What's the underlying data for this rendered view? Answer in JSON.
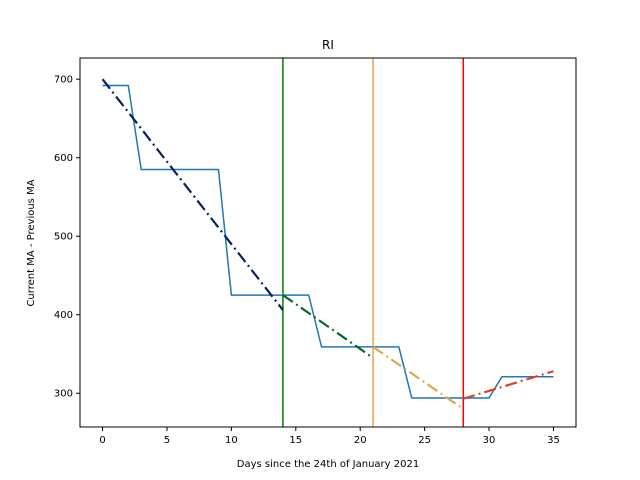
{
  "chart_data": {
    "type": "line",
    "title": "RI",
    "xlabel": "Days since the 24th of January 2021",
    "ylabel": "Current MA - Previous MA",
    "xlim": [
      -1.75,
      36.75
    ],
    "ylim": [
      257,
      727
    ],
    "xticks": [
      0,
      5,
      10,
      15,
      20,
      25,
      30,
      35
    ],
    "yticks": [
      300,
      400,
      500,
      600,
      700
    ],
    "grid": false,
    "series": [
      {
        "color": "#1f77b4",
        "style": "solid",
        "x": [
          0,
          1,
          2,
          3,
          4,
          5,
          6,
          7,
          8,
          9,
          10,
          11,
          12,
          13,
          14,
          15,
          16,
          17,
          18,
          19,
          20,
          21,
          22,
          23,
          24,
          25,
          26,
          27,
          28,
          29,
          30,
          31,
          32,
          33,
          34,
          35
        ],
        "y": [
          692,
          692,
          692,
          585,
          585,
          585,
          585,
          585,
          585,
          585,
          425,
          425,
          425,
          425,
          425,
          425,
          425,
          359,
          359,
          359,
          359,
          359,
          359,
          359,
          294,
          294,
          294,
          294,
          294,
          294,
          294,
          321,
          321,
          321,
          321,
          321
        ]
      },
      {
        "color": "#0b1f5c",
        "style": "dashdot",
        "x": [
          0,
          14
        ],
        "y": [
          700,
          406
        ]
      },
      {
        "color": "#0b6623",
        "style": "dashdot",
        "x": [
          14,
          21
        ],
        "y": [
          425,
          345
        ]
      },
      {
        "color": "#e0a84e",
        "style": "dashdot",
        "x": [
          21,
          28
        ],
        "y": [
          359,
          280
        ]
      },
      {
        "color": "#d9412b",
        "style": "dashdot",
        "x": [
          28,
          35
        ],
        "y": [
          293,
          328
        ]
      }
    ],
    "vlines": [
      {
        "x": 14,
        "color": "#008000"
      },
      {
        "x": 21,
        "color": "#f0a04b"
      },
      {
        "x": 28,
        "color": "#ff0000"
      }
    ]
  }
}
